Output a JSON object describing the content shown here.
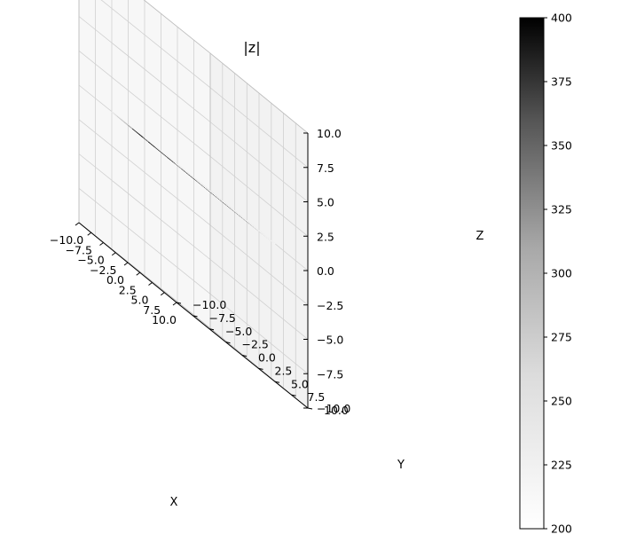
{
  "chart_data": {
    "type": "surface3d",
    "title": "|z|",
    "xlabel": "X",
    "ylabel": "Y",
    "zlabel": "Z",
    "xlim": [
      -10,
      10
    ],
    "ylim": [
      -10,
      10
    ],
    "zlim": [
      -10,
      10
    ],
    "xticks": [
      "−10.0",
      "−7.5",
      "−5.0",
      "−2.5",
      "0.0",
      "2.5",
      "5.0",
      "7.5",
      "10.0"
    ],
    "yticks": [
      "−10.0",
      "−7.5",
      "−5.0",
      "−2.5",
      "0.0",
      "2.5",
      "5.0",
      "7.5",
      "10.0"
    ],
    "zticks": [
      "−10.0",
      "−7.5",
      "−5.0",
      "−2.5",
      "0.0",
      "2.5",
      "5.0",
      "7.5",
      "10.0"
    ],
    "grid": true,
    "colormap": "gray_r",
    "colorbar": {
      "min": 200,
      "max": 400,
      "ticks": [
        "200",
        "225",
        "250",
        "275",
        "300",
        "325",
        "350",
        "375",
        "400"
      ]
    },
    "surface": {
      "shape": "annulus",
      "inner_radius": 0.8,
      "outer_radius": 10,
      "z": 0,
      "dark_sector_start_deg": -90,
      "dark_sector_end_deg": 20
    },
    "colors": {
      "low": "#ffffff",
      "high": "#000000",
      "pane": "#f2f2f2",
      "grid": "#d0d0d0"
    }
  }
}
